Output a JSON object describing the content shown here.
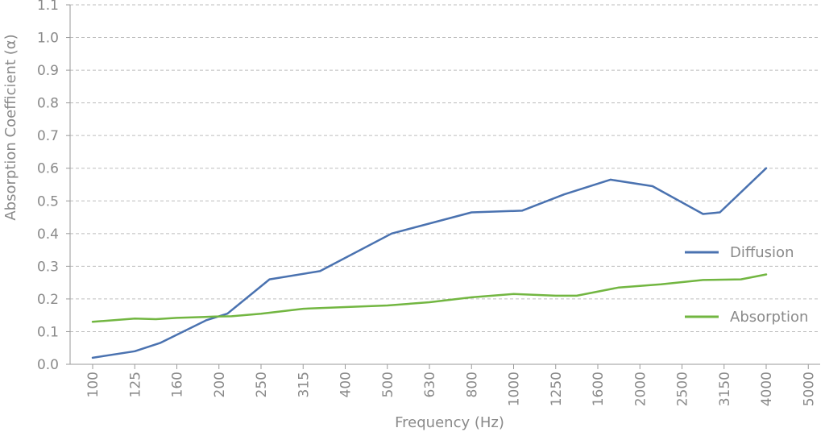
{
  "chart_data": {
    "type": "line",
    "title": "",
    "xlabel": "Frequency (Hz)",
    "ylabel": "Absorption Coefficient (α)",
    "categories": [
      "100",
      "125",
      "160",
      "200",
      "250",
      "315",
      "400",
      "500",
      "630",
      "800",
      "1000",
      "1250",
      "1600",
      "2000",
      "2500",
      "3150",
      "4000",
      "5000"
    ],
    "ylim": [
      0,
      1.1
    ],
    "yticks": [
      "0.0",
      "0.1",
      "0.2",
      "0.3",
      "0.4",
      "0.5",
      "0.6",
      "0.7",
      "0.8",
      "0.9",
      "1.0",
      "1.1"
    ],
    "grid": true,
    "legend_position": "right",
    "series": [
      {
        "name": "Diffusion",
        "color": "#4a72b0",
        "x": [
          0,
          1,
          1.6,
          2.7,
          3.2,
          4.2,
          5.4,
          7.1,
          9.0,
          10.2,
          11.2,
          12.3,
          13.3,
          14.5,
          14.9,
          16.0
        ],
        "values": [
          0.02,
          0.04,
          0.065,
          0.135,
          0.155,
          0.26,
          0.285,
          0.4,
          0.465,
          0.47,
          0.52,
          0.565,
          0.545,
          0.46,
          0.465,
          0.6
        ]
      },
      {
        "name": "Absorption",
        "color": "#72b641",
        "x": [
          0,
          1,
          1.5,
          2.0,
          2.9,
          3.3,
          4.0,
          5.0,
          6.0,
          7.0,
          8.0,
          9.0,
          10.0,
          11.0,
          11.5,
          12.5,
          13.5,
          14.5,
          15.4,
          16.0
        ],
        "values": [
          0.13,
          0.14,
          0.138,
          0.142,
          0.146,
          0.147,
          0.155,
          0.17,
          0.175,
          0.18,
          0.19,
          0.205,
          0.215,
          0.21,
          0.21,
          0.235,
          0.245,
          0.258,
          0.26,
          0.275
        ]
      }
    ]
  }
}
